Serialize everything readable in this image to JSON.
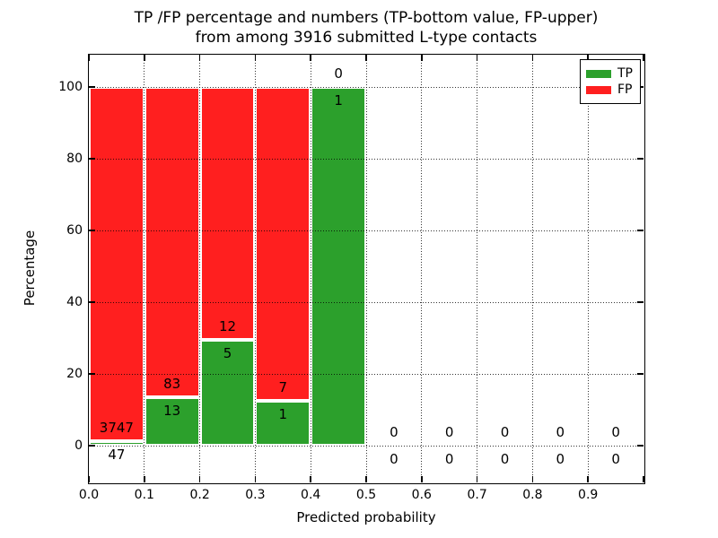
{
  "title": {
    "line1": "TP /FP percentage and numbers (TP-bottom value, FP-upper)",
    "line2": "from among 3916 submitted L-type contacts"
  },
  "axes": {
    "xlabel": "Predicted probability",
    "ylabel": "Percentage",
    "x_tick_labels": [
      "0.0",
      "0.1",
      "0.2",
      "0.3",
      "0.4",
      "0.5",
      "0.6",
      "0.7",
      "0.8",
      "0.9"
    ],
    "y_tick_labels": [
      "0",
      "20",
      "40",
      "60",
      "80",
      "100"
    ],
    "y_tick_values": [
      0,
      20,
      40,
      60,
      80,
      100
    ]
  },
  "legend": {
    "entries": [
      {
        "label": "TP",
        "color": "#2ca02c"
      },
      {
        "label": "FP",
        "color": "#ff1f1f"
      }
    ]
  },
  "chart_data": {
    "type": "bar",
    "stacked": true,
    "title": "TP /FP percentage and numbers (TP-bottom value, FP-upper) from among 3916 submitted L-type contacts",
    "xlabel": "Predicted probability",
    "ylabel": "Percentage",
    "total_contacts": 3916,
    "x_bin_starts": [
      0.0,
      0.1,
      0.2,
      0.3,
      0.4,
      0.5,
      0.6,
      0.7,
      0.8,
      0.9
    ],
    "bin_width": 0.1,
    "xlim": [
      0.0,
      1.0
    ],
    "ylim": [
      -10,
      108.75
    ],
    "grid": "dotted",
    "legend_position": "upper right",
    "series": [
      {
        "name": "TP",
        "color": "#2ca02c",
        "counts": [
          47,
          13,
          5,
          1,
          1,
          0,
          0,
          0,
          0,
          0
        ],
        "percent": [
          1.24,
          13.54,
          29.41,
          12.5,
          100,
          0,
          0,
          0,
          0,
          0
        ]
      },
      {
        "name": "FP",
        "color": "#ff1f1f",
        "counts": [
          3747,
          83,
          12,
          7,
          0,
          0,
          0,
          0,
          0,
          0
        ],
        "percent": [
          98.76,
          86.46,
          70.59,
          87.5,
          0,
          0,
          0,
          0,
          0,
          0
        ]
      }
    ]
  }
}
